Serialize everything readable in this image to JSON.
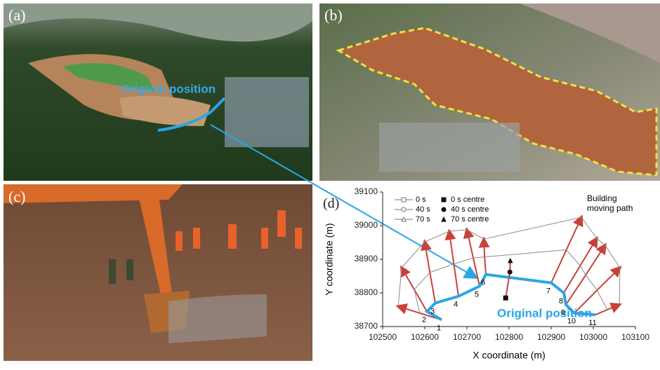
{
  "panels": {
    "a": {
      "label": "(a)",
      "annotation": "Original position"
    },
    "b": {
      "label": "(b)"
    },
    "c": {
      "label": "(c)"
    }
  },
  "chart_data": {
    "type": "line",
    "panel_label": "(d)",
    "x_label": "X coordinate (m)",
    "y_label": "Y coordinate (m)",
    "xlim": [
      102500,
      103100
    ],
    "xticks": [
      102500,
      102600,
      102700,
      102800,
      102900,
      103000,
      103100
    ],
    "ylim": [
      38700,
      39100
    ],
    "yticks": [
      38700,
      38800,
      38900,
      39000,
      39100
    ],
    "annotation": "Original position",
    "path_annotation": [
      "Building",
      "moving path"
    ],
    "point_labels": [
      "1",
      "2",
      "3",
      "4",
      "5",
      "6",
      "7",
      "8",
      "9",
      "10",
      "11"
    ],
    "arrow_color": "#c8413a",
    "series": [
      {
        "name": "0  s",
        "color": "#2aa6e6",
        "marker": "square",
        "x": [
          102640,
          102605,
          102625,
          102680,
          102730,
          102745,
          102900,
          102930,
          102935,
          102955,
          103005
        ],
        "y": [
          38720,
          38745,
          38770,
          38790,
          38820,
          38855,
          38830,
          38800,
          38765,
          38740,
          38735
        ]
      },
      {
        "name": "40 s",
        "color": "#8a8a8a",
        "marker": "circle",
        "x": [
          102588,
          102575,
          102612,
          102669,
          102715,
          102742,
          102936,
          102969,
          102982,
          103009,
          103033
        ],
        "y": [
          38740,
          38810,
          38861,
          38886,
          38904,
          38907,
          38928,
          38881,
          38853,
          38808,
          38750
        ]
      },
      {
        "name": "70 s",
        "color": "#8a8a8a",
        "marker": "triangle",
        "x": [
          102537,
          102545,
          102600,
          102658,
          102700,
          102740,
          102972,
          103008,
          103028,
          103063,
          103062
        ],
        "y": [
          38760,
          38875,
          38952,
          38983,
          38988,
          38960,
          39025,
          38962,
          38942,
          38875,
          38765
        ]
      }
    ],
    "centres": {
      "names": [
        "0  s centre",
        "40 s centre",
        "70 s centre"
      ],
      "markers": [
        "square",
        "circle",
        "triangle"
      ],
      "x": [
        102792,
        102802,
        102803
      ],
      "y": [
        38785,
        38862,
        38896
      ]
    }
  }
}
